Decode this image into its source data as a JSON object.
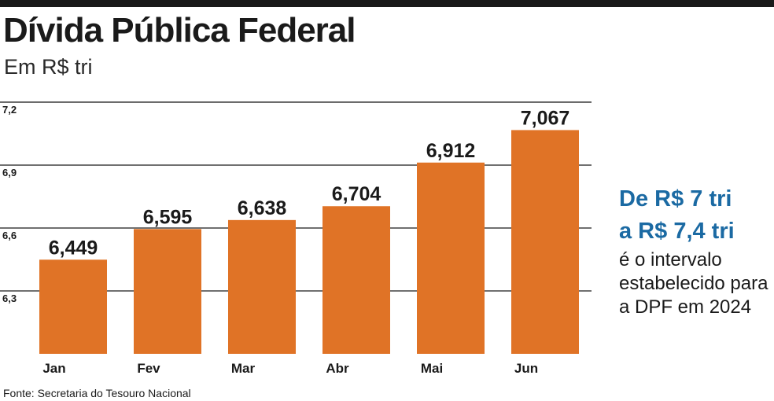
{
  "title": "Dívida Pública Federal",
  "subtitle": "Em R$ tri",
  "source": "Fonte: Secretaria do Tesouro Nacional",
  "side_note": {
    "highlight_line1": "De R$ 7 tri",
    "highlight_line2": "a R$ 7,4 tri",
    "body": "é o intervalo estabelecido para a DPF em 2024"
  },
  "colors": {
    "bar": "#e07326",
    "highlight": "#1b6aa3",
    "gridline": "#1a1a1a"
  },
  "chart_data": {
    "type": "bar",
    "title": "Dívida Pública Federal",
    "subtitle": "Em R$ tri",
    "categories": [
      "Jan",
      "Fev",
      "Mar",
      "Abr",
      "Mai",
      "Jun"
    ],
    "values": [
      6.449,
      6.595,
      6.638,
      6.704,
      6.912,
      7.067
    ],
    "data_labels": [
      "6,449",
      "6,595",
      "6,638",
      "6,704",
      "6,912",
      "7,067"
    ],
    "y_ticks": [
      6.3,
      6.6,
      6.9,
      7.2
    ],
    "y_tick_labels": [
      "6,3",
      "6,6",
      "6,9",
      "7,2"
    ],
    "ylim": [
      6.0,
      7.2
    ],
    "grid": true,
    "xlabel": "",
    "ylabel": ""
  }
}
